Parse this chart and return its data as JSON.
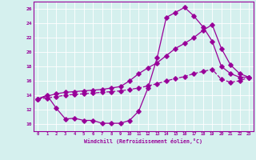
{
  "xlabel": "Windchill (Refroidissement éolien,°C)",
  "bg_color": "#d5f0ee",
  "line_color": "#990099",
  "grid_color": "#aaddcc",
  "xlim": [
    -0.5,
    23.5
  ],
  "ylim": [
    9.0,
    27.0
  ],
  "yticks": [
    10,
    12,
    14,
    16,
    18,
    20,
    22,
    24,
    26
  ],
  "xticks": [
    0,
    1,
    2,
    3,
    4,
    5,
    6,
    7,
    8,
    9,
    10,
    11,
    12,
    13,
    14,
    15,
    16,
    17,
    18,
    19,
    20,
    21,
    22,
    23
  ],
  "line1_x": [
    0,
    1,
    2,
    3,
    4,
    5,
    6,
    7,
    8,
    9,
    10,
    11,
    12,
    13,
    14,
    15,
    16,
    17,
    18,
    19,
    20,
    21,
    22,
    23
  ],
  "line1_y": [
    13.5,
    14.0,
    12.2,
    10.7,
    10.8,
    10.5,
    10.5,
    10.1,
    10.1,
    10.1,
    10.5,
    11.8,
    15.0,
    19.2,
    24.8,
    25.5,
    26.2,
    25.0,
    23.5,
    21.5,
    18.0,
    17.0,
    16.5,
    16.5
  ],
  "line2_x": [
    0,
    2,
    3,
    4,
    5,
    6,
    7,
    8,
    9,
    10,
    11,
    12,
    13,
    14,
    15,
    16,
    17,
    18,
    19,
    20,
    21,
    22,
    23
  ],
  "line2_y": [
    13.5,
    14.2,
    14.4,
    14.5,
    14.6,
    14.7,
    14.8,
    15.0,
    15.2,
    16.0,
    17.0,
    17.8,
    18.5,
    19.5,
    20.5,
    21.2,
    22.0,
    23.0,
    23.8,
    20.5,
    18.2,
    17.0,
    16.5
  ],
  "line3_x": [
    0,
    1,
    2,
    3,
    4,
    5,
    6,
    7,
    8,
    9,
    10,
    11,
    12,
    13,
    14,
    15,
    16,
    17,
    18,
    19,
    20,
    21,
    22,
    23
  ],
  "line3_y": [
    13.5,
    13.6,
    13.8,
    14.0,
    14.1,
    14.2,
    14.3,
    14.4,
    14.5,
    14.6,
    14.8,
    15.0,
    15.3,
    15.6,
    16.0,
    16.3,
    16.6,
    17.0,
    17.3,
    17.6,
    16.2,
    15.8,
    16.0,
    16.5
  ]
}
